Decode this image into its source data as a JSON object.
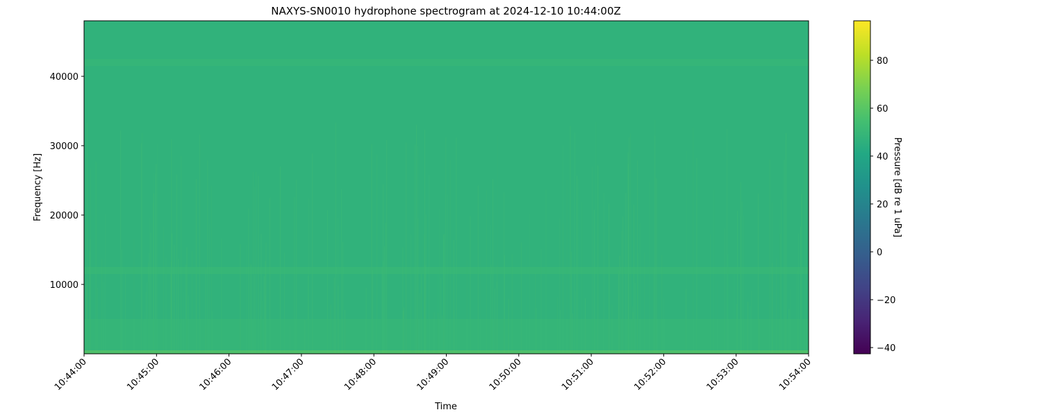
{
  "chart_data": {
    "type": "heatmap",
    "title": "NAXYS-SN0010 hydrophone spectrogram at 2024-12-10 10:44:00Z",
    "xlabel": "Time",
    "ylabel": "Frequency [Hz]",
    "x_ticks": [
      "10:44:00",
      "10:45:00",
      "10:46:00",
      "10:47:00",
      "10:48:00",
      "10:49:00",
      "10:50:00",
      "10:51:00",
      "10:52:00",
      "10:53:00",
      "10:54:00"
    ],
    "y_ticks": [
      10000,
      20000,
      30000,
      40000
    ],
    "ylim": [
      0,
      48000
    ],
    "colorbar": {
      "label": "Pressure [dB re 1 uPa]",
      "ticks": [
        -40,
        -20,
        0,
        20,
        40,
        60,
        80
      ],
      "range": [
        -42.6,
        96.5
      ],
      "colormap": "viridis"
    },
    "background_level_db": 47,
    "features": [
      {
        "freq_range_hz": [
          0,
          500
        ],
        "level_db": 62
      },
      {
        "freq_range_hz": [
          500,
          5000
        ],
        "level_db": 50
      },
      {
        "freq_range_hz": [
          11500,
          12500
        ],
        "level_db": 51
      },
      {
        "freq_range_hz": [
          41500,
          42500
        ],
        "level_db": 50
      }
    ],
    "grid": false
  }
}
